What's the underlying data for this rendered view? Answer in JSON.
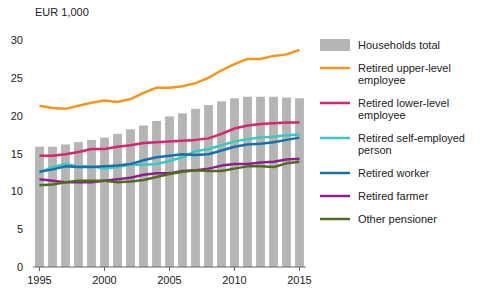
{
  "chart_data": {
    "type": "bar",
    "y_label": "EUR 1,000",
    "x": [
      1995,
      1996,
      1997,
      1998,
      1999,
      2000,
      2001,
      2002,
      2003,
      2004,
      2005,
      2006,
      2007,
      2008,
      2009,
      2010,
      2011,
      2012,
      2013,
      2014,
      2015
    ],
    "xlim": [
      1994.5,
      2015.5
    ],
    "xticks": [
      1995,
      2000,
      2005,
      2010,
      2015
    ],
    "ylim": [
      0,
      30
    ],
    "yticks": [
      0,
      5,
      10,
      15,
      20,
      25,
      30
    ],
    "grid": false,
    "legend": "right",
    "series": [
      {
        "name": "Households total",
        "type": "bar",
        "color": "#b5b5b5",
        "values": [
          15.9,
          15.9,
          16.2,
          16.5,
          16.8,
          17.1,
          17.6,
          18.2,
          18.7,
          19.3,
          19.9,
          20.3,
          20.9,
          21.4,
          21.9,
          22.3,
          22.5,
          22.5,
          22.5,
          22.4,
          22.3
        ]
      },
      {
        "name": "Retired upper-level employee",
        "type": "line",
        "color": "#f7941d",
        "values": [
          21.3,
          21.0,
          20.9,
          21.3,
          21.7,
          22.0,
          21.8,
          22.2,
          23.0,
          23.7,
          23.7,
          23.9,
          24.3,
          25.0,
          26.0,
          26.8,
          27.5,
          27.5,
          27.9,
          28.1,
          28.7
        ]
      },
      {
        "name": "Retired lower-level employee",
        "type": "line",
        "color": "#d6266e",
        "values": [
          14.7,
          14.7,
          14.9,
          15.2,
          15.6,
          15.6,
          15.9,
          16.1,
          16.4,
          16.5,
          16.6,
          16.7,
          16.8,
          17.0,
          17.6,
          18.3,
          18.7,
          18.9,
          19.0,
          19.1,
          19.1
        ]
      },
      {
        "name": "Retired self-employed person",
        "type": "line",
        "color": "#3cc8c2",
        "values": [
          12.5,
          13.2,
          13.6,
          13.3,
          13.3,
          13.0,
          13.2,
          13.5,
          13.5,
          13.6,
          14.0,
          14.5,
          15.3,
          15.6,
          16.1,
          16.6,
          16.9,
          17.1,
          17.2,
          17.4,
          17.5
        ]
      },
      {
        "name": "Retired worker",
        "type": "line",
        "color": "#1b6fa8",
        "values": [
          12.6,
          12.9,
          13.3,
          13.2,
          13.2,
          13.3,
          13.4,
          13.6,
          14.1,
          14.5,
          14.7,
          14.9,
          14.8,
          14.9,
          15.4,
          15.9,
          16.2,
          16.3,
          16.5,
          16.8,
          17.1
        ]
      },
      {
        "name": "Retired farmer",
        "type": "line",
        "color": "#8e1f8c",
        "values": [
          11.6,
          11.4,
          11.2,
          11.2,
          11.2,
          11.4,
          11.6,
          11.8,
          12.2,
          12.4,
          12.4,
          12.7,
          12.8,
          13.0,
          13.4,
          13.6,
          13.6,
          13.8,
          13.9,
          14.2,
          14.3
        ]
      },
      {
        "name": "Other pensioner",
        "type": "line",
        "color": "#4f6b1e",
        "values": [
          10.8,
          10.9,
          11.2,
          11.4,
          11.4,
          11.4,
          11.2,
          11.3,
          11.5,
          11.9,
          12.3,
          12.6,
          12.8,
          12.7,
          12.7,
          13.0,
          13.3,
          13.3,
          13.2,
          13.7,
          13.9
        ]
      }
    ]
  }
}
